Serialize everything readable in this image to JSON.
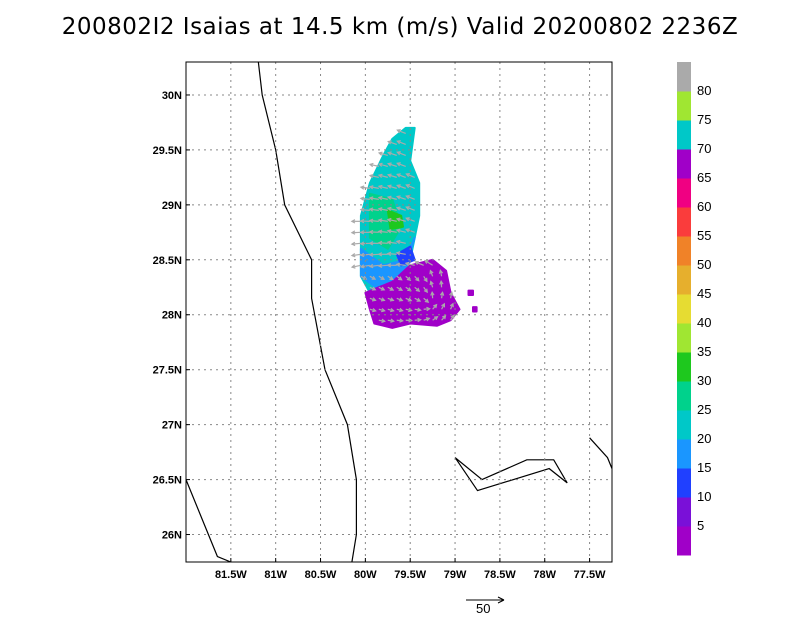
{
  "title": "200802I2 Isaias at 14.5 km (m/s) Valid 20200802 2236Z",
  "chart_data": {
    "type": "heatmap",
    "title": "200802I2 Isaias at 14.5 km (m/s) Valid 20200802 2236Z",
    "x_axis": {
      "range": [
        -82.0,
        -77.25
      ],
      "ticks": [
        -81.5,
        -81,
        -80.5,
        -80,
        -79.5,
        -79,
        -78.5,
        -78,
        -77.5
      ],
      "tick_labels": [
        "81.5W",
        "81W",
        "80.5W",
        "80W",
        "79.5W",
        "79W",
        "78.5W",
        "78W",
        "77.5W"
      ]
    },
    "y_axis": {
      "range": [
        25.75,
        30.3
      ],
      "ticks": [
        26,
        26.5,
        27,
        27.5,
        28,
        28.5,
        29,
        29.5,
        30
      ],
      "tick_labels": [
        "26N",
        "26.5N",
        "27N",
        "27.5N",
        "28N",
        "28.5N",
        "29N",
        "29.5N",
        "30N"
      ]
    },
    "grid": true,
    "colorbar": {
      "labels": [
        "5",
        "10",
        "15",
        "20",
        "25",
        "30",
        "35",
        "40",
        "45",
        "50",
        "55",
        "60",
        "65",
        "70",
        "75",
        "80"
      ],
      "colors": [
        "#a000c8",
        "#7a10d8",
        "#2040ff",
        "#1a96ff",
        "#00c8c8",
        "#00d28c",
        "#1ec81e",
        "#a0e632",
        "#e6dc32",
        "#e6af2d",
        "#f08228",
        "#fa3c3c",
        "#f00082",
        "#a000c8",
        "#00c8c8",
        "#a0e632",
        "#aaaaaa"
      ]
    },
    "reference_vector": {
      "label": "50"
    },
    "coastlines": [
      [
        [
          -81.2,
          30.35
        ],
        [
          -81.15,
          30.0
        ],
        [
          -81.0,
          29.5
        ],
        [
          -80.9,
          29.0
        ],
        [
          -80.6,
          28.5
        ],
        [
          -80.6,
          28.15
        ],
        [
          -80.45,
          27.5
        ],
        [
          -80.2,
          27.0
        ],
        [
          -80.1,
          26.5
        ],
        [
          -80.1,
          26.0
        ],
        [
          -80.15,
          25.75
        ]
      ],
      [
        [
          -82.0,
          26.5
        ],
        [
          -81.8,
          26.1
        ],
        [
          -81.65,
          25.8
        ],
        [
          -81.5,
          25.75
        ]
      ],
      [
        [
          -79.0,
          26.7
        ],
        [
          -78.7,
          26.5
        ],
        [
          -78.2,
          26.68
        ],
        [
          -77.9,
          26.68
        ],
        [
          -77.75,
          26.47
        ],
        [
          -77.95,
          26.6
        ],
        [
          -78.75,
          26.4
        ],
        [
          -79.0,
          26.7
        ]
      ],
      [
        [
          -77.5,
          26.88
        ],
        [
          -77.3,
          26.7
        ],
        [
          -77.25,
          26.6
        ]
      ]
    ],
    "wind_field": {
      "blobs": [
        {
          "name": "northern-band",
          "polygon": [
            [
              -79.55,
              29.7
            ],
            [
              -79.45,
              29.7
            ],
            [
              -79.5,
              29.4
            ],
            [
              -79.4,
              29.2
            ],
            [
              -79.4,
              28.9
            ],
            [
              -79.45,
              28.7
            ],
            [
              -79.5,
              28.5
            ],
            [
              -79.6,
              28.3
            ],
            [
              -79.8,
              28.2
            ],
            [
              -79.95,
              28.2
            ],
            [
              -80.05,
              28.35
            ],
            [
              -80.05,
              28.6
            ],
            [
              -80.05,
              28.9
            ],
            [
              -79.95,
              29.2
            ],
            [
              -79.8,
              29.45
            ],
            [
              -79.7,
              29.6
            ]
          ],
          "color": "#00c8c8"
        },
        {
          "name": "inner-green",
          "polygon": [
            [
              -79.95,
              29.1
            ],
            [
              -79.7,
              29.05
            ],
            [
              -79.6,
              28.8
            ],
            [
              -79.75,
              28.6
            ],
            [
              -79.95,
              28.7
            ]
          ],
          "color": "#00d28c"
        },
        {
          "name": "green-core",
          "polygon": [
            [
              -79.75,
              28.95
            ],
            [
              -79.6,
              28.9
            ],
            [
              -79.58,
              28.8
            ],
            [
              -79.72,
              28.78
            ]
          ],
          "color": "#1ec81e"
        },
        {
          "name": "blue-rim",
          "polygon": [
            [
              -80.05,
              28.6
            ],
            [
              -79.8,
              28.45
            ],
            [
              -79.55,
              28.5
            ],
            [
              -79.45,
              28.7
            ],
            [
              -79.6,
              28.3
            ],
            [
              -79.8,
              28.2
            ],
            [
              -80.05,
              28.35
            ]
          ],
          "color": "#1a96ff"
        },
        {
          "name": "southern-purple",
          "polygon": [
            [
              -80.0,
              28.2
            ],
            [
              -79.7,
              28.3
            ],
            [
              -79.5,
              28.45
            ],
            [
              -79.25,
              28.5
            ],
            [
              -79.1,
              28.4
            ],
            [
              -79.05,
              28.2
            ],
            [
              -78.95,
              28.05
            ],
            [
              -79.05,
              27.95
            ],
            [
              -79.2,
              27.9
            ],
            [
              -79.5,
              27.92
            ],
            [
              -79.7,
              27.88
            ],
            [
              -79.9,
              27.92
            ],
            [
              -79.95,
              28.05
            ]
          ],
          "color": "#a000c8"
        },
        {
          "name": "dark-blue-edge",
          "polygon": [
            [
              -79.65,
              28.55
            ],
            [
              -79.5,
              28.62
            ],
            [
              -79.45,
              28.5
            ],
            [
              -79.6,
              28.45
            ]
          ],
          "color": "#2040ff"
        },
        {
          "name": "islet-1",
          "polygon": [
            [
              -78.85,
              28.22
            ],
            [
              -78.8,
              28.22
            ],
            [
              -78.8,
              28.18
            ],
            [
              -78.85,
              28.18
            ]
          ],
          "color": "#a000c8"
        },
        {
          "name": "islet-2",
          "polygon": [
            [
              -78.8,
              28.07
            ],
            [
              -78.76,
              28.07
            ],
            [
              -78.76,
              28.03
            ],
            [
              -78.8,
              28.03
            ]
          ],
          "color": "#a000c8"
        }
      ],
      "vectors": {
        "stride_deg": 0.1,
        "region_x": [
          -80.05,
          -79.0
        ],
        "region_y": [
          27.95,
          29.7
        ],
        "color": "#aaaaaa"
      }
    }
  }
}
